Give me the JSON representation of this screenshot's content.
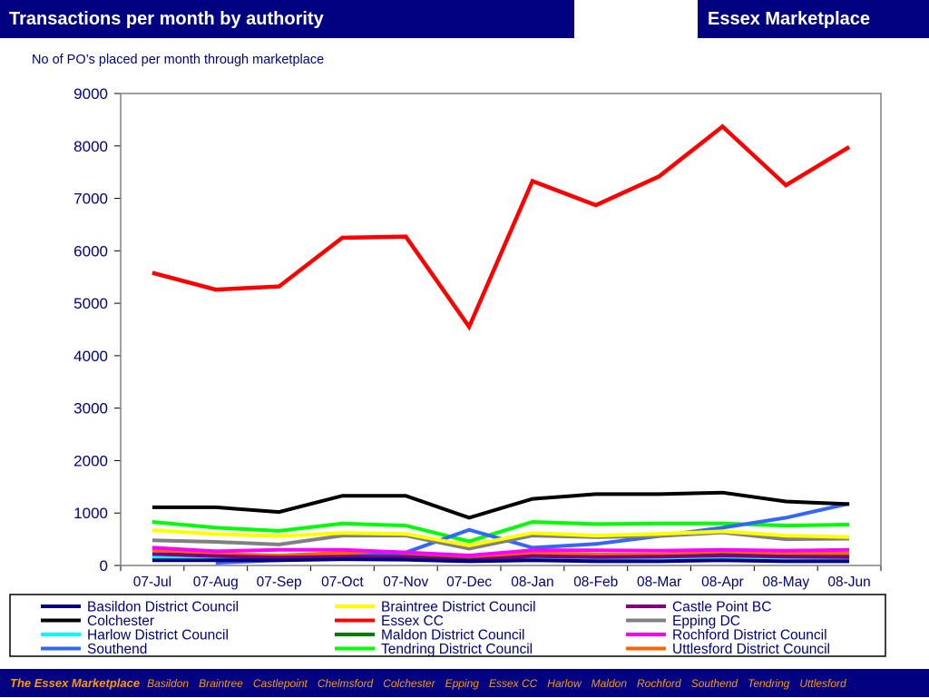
{
  "header": {
    "title": "Transactions per month by authority",
    "brand": "Essex Marketplace"
  },
  "subtitle": "No of PO’s placed per month through marketplace",
  "footer": {
    "brand": "The Essex Marketplace",
    "items": [
      "Basildon",
      "Braintree",
      "Castlepoint",
      "Chelmsford",
      "Colchester",
      "Epping",
      "Essex CC",
      "Harlow",
      "Maldon",
      "Rochford",
      "Southend",
      "Tendring",
      "Uttlesford"
    ]
  },
  "chart_data": {
    "type": "line",
    "title": "",
    "xlabel": "",
    "ylabel": "",
    "ylim": [
      0,
      9000
    ],
    "yticks": [
      0,
      1000,
      2000,
      3000,
      4000,
      5000,
      6000,
      7000,
      8000,
      9000
    ],
    "grid": false,
    "legend_position": "bottom",
    "categories": [
      "07-Jul",
      "07-Aug",
      "07-Sep",
      "07-Oct",
      "07-Nov",
      "07-Dec",
      "08-Jan",
      "08-Feb",
      "08-Mar",
      "08-Apr",
      "08-May",
      "08-Jun"
    ],
    "series": [
      {
        "name": "Basildon District Council",
        "color": "#000080",
        "values": [
          100,
          100,
          100,
          120,
          110,
          80,
          100,
          80,
          80,
          100,
          80,
          80
        ]
      },
      {
        "name": "Braintree District Council",
        "color": "#FFFF00",
        "values": [
          670,
          600,
          560,
          620,
          600,
          380,
          620,
          570,
          600,
          650,
          570,
          540
        ]
      },
      {
        "name": "Castle Point BC",
        "color": "#800080",
        "values": [
          220,
          180,
          150,
          170,
          160,
          100,
          180,
          160,
          170,
          190,
          170,
          160
        ]
      },
      {
        "name": "Colchester",
        "color": "#000000",
        "values": [
          1110,
          1110,
          1020,
          1330,
          1330,
          910,
          1270,
          1360,
          1360,
          1390,
          1220,
          1170
        ]
      },
      {
        "name": "Essex CC",
        "color": "#FF0000",
        "values": [
          5580,
          5260,
          5320,
          6250,
          6270,
          4550,
          7330,
          6870,
          7420,
          8370,
          7250,
          7980
        ]
      },
      {
        "name": "Epping DC",
        "color": "#808080",
        "values": [
          480,
          450,
          400,
          570,
          570,
          320,
          570,
          540,
          560,
          630,
          500,
          510
        ]
      },
      {
        "name": "Harlow  District Council",
        "color": "#00FFFF",
        "values": [
          150,
          140,
          140,
          160,
          150,
          100,
          150,
          140,
          150,
          170,
          150,
          140
        ]
      },
      {
        "name": "Maldon District Council",
        "color": "#008000",
        "values": [
          180,
          160,
          130,
          170,
          170,
          110,
          170,
          150,
          160,
          200,
          170,
          170
        ]
      },
      {
        "name": "Rochford District Council",
        "color": "#FF00FF",
        "values": [
          340,
          270,
          300,
          300,
          250,
          190,
          290,
          290,
          280,
          300,
          280,
          300
        ]
      },
      {
        "name": "Southend",
        "color": "#3366FF",
        "values": [
          null,
          50,
          100,
          160,
          250,
          680,
          340,
          410,
          560,
          720,
          910,
          1180
        ]
      },
      {
        "name": "Tendring District Council",
        "color": "#00FF00",
        "values": [
          830,
          720,
          660,
          800,
          760,
          460,
          830,
          790,
          800,
          800,
          760,
          780
        ]
      },
      {
        "name": "Uttlesford District Council",
        "color": "#FF6600",
        "values": [
          300,
          220,
          190,
          240,
          220,
          140,
          230,
          210,
          210,
          240,
          220,
          230
        ]
      }
    ]
  }
}
